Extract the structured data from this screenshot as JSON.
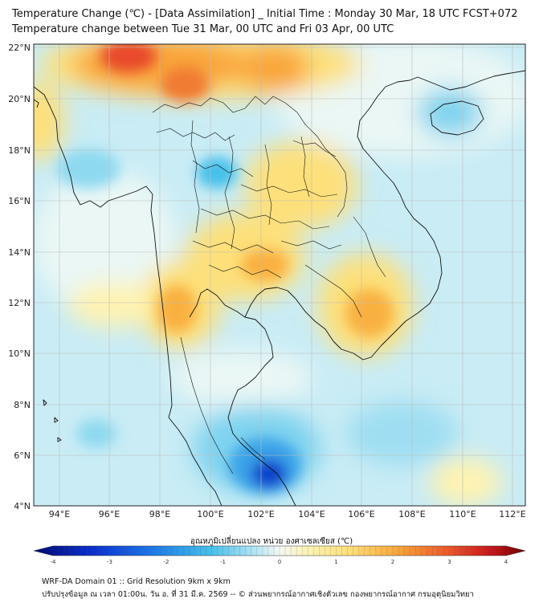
{
  "header": {
    "title_line1": "Temperature Change (℃) - [Data Assimilation] _ Initial Time : Monday 30 Mar, 18 UTC FCST+072",
    "title_line2": "Temperature change between Tue 31 Mar, 00 UTC and Fri 03 Apr, 00 UTC"
  },
  "map": {
    "lat_labels": [
      "22°N",
      "20°N",
      "18°N",
      "16°N",
      "14°N",
      "12°N",
      "10°N",
      "8°N",
      "6°N",
      "4°N"
    ],
    "lon_labels": [
      "94°E",
      "96°E",
      "98°E",
      "100°E",
      "102°E",
      "104°E",
      "106°E",
      "108°E",
      "110°E",
      "112°E"
    ],
    "colors": {
      "warm_strong": "#e8492b",
      "warm": "#f9a63a",
      "warm_light": "#fde07a",
      "neutral": "#eef7f3",
      "cool_light": "#bfe9f5",
      "cool": "#45c0ea",
      "cool_strong": "#1040cc",
      "coastline": "#111111"
    }
  },
  "colorbar": {
    "title": "อุณหภูมิเปลี่ยนแปลง หน่วย องศาเซลเซียส (℃)",
    "ticks": [
      "-4",
      "-3",
      "-2",
      "-1",
      "0",
      "1",
      "2",
      "3",
      "4"
    ],
    "min": -4,
    "max": 4
  },
  "footer": {
    "line1": "WRF-DA Domain 01 :: Grid Resolution 9km x 9km",
    "line2": "ปรับปรุงข้อมูล ณ เวลา 01:00น. วัน อ. ที่ 31 มี.ค. 2569 -- © ส่วนพยากรณ์อากาศเชิงตัวเลข กองพยากรณ์อากาศ กรมอุตุนิยมวิทยา"
  }
}
